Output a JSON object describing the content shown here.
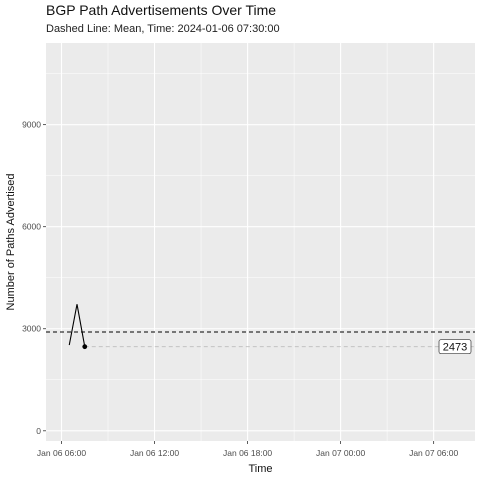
{
  "chart_data": {
    "type": "line",
    "title": "BGP Path Advertisements Over Time",
    "subtitle": "Dashed Line: Mean, Time: 2024-01-06 07:30:00",
    "xlabel": "Time",
    "ylabel": "Number of Paths Advertised",
    "x_ticks": [
      "Jan 06 06:00",
      "Jan 06 12:00",
      "Jan 06 18:00",
      "Jan 07 00:00",
      "Jan 07 06:00"
    ],
    "y_ticks": [
      0,
      3000,
      6000,
      9000
    ],
    "xlim": [
      "2024-01-06 05:00",
      "2024-01-07 08:40"
    ],
    "ylim": [
      -300,
      11400
    ],
    "series": [
      {
        "x": [
          "2024-01-06 06:30",
          "2024-01-06 07:00",
          "2024-01-06 07:30"
        ],
        "y": [
          2520,
          3720,
          2473
        ]
      }
    ],
    "highlight_point": {
      "x": "2024-01-06 07:30",
      "y": 2473
    },
    "mean_line": 2905,
    "value_line": 2473,
    "annotation_label": "2473",
    "grid": true,
    "colors": {
      "panel": "#ebebeb",
      "grid": "#ffffff",
      "line": "#000000",
      "value_line": "#bdbdbd"
    }
  }
}
